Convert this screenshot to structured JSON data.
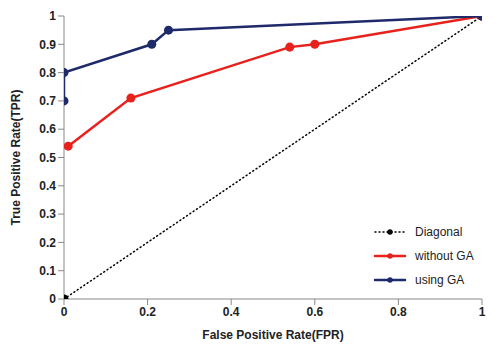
{
  "chart_data": {
    "type": "line",
    "x_label": "False Positive Rate(FPR)",
    "y_label": "True Positive Rate(TPR)",
    "xlim": [
      0,
      1
    ],
    "ylim": [
      0,
      1
    ],
    "xticks": [
      0,
      0.2,
      0.4,
      0.6,
      0.8,
      1
    ],
    "yticks": [
      0,
      0.1,
      0.2,
      0.3,
      0.4,
      0.5,
      0.6,
      0.7,
      0.8,
      0.9,
      1
    ],
    "grid": false,
    "legend": "lower right",
    "series": [
      {
        "name": "Diagonal",
        "color": "#000000",
        "line_style": "dotted",
        "marker": "circle",
        "x": [
          0,
          1
        ],
        "values": [
          0,
          1
        ]
      },
      {
        "name": "without GA",
        "color": "#e8211c",
        "line_style": "solid",
        "marker": "circle",
        "x": [
          0.01,
          0.16,
          0.54,
          0.6,
          1
        ],
        "values": [
          0.54,
          0.71,
          0.89,
          0.9,
          1
        ]
      },
      {
        "name": "using GA",
        "color": "#1f2a6b",
        "line_style": "solid",
        "marker": "circle",
        "x": [
          0,
          0,
          0.21,
          0.25,
          1
        ],
        "values": [
          0.7,
          0.8,
          0.9,
          0.95,
          1
        ]
      }
    ]
  }
}
